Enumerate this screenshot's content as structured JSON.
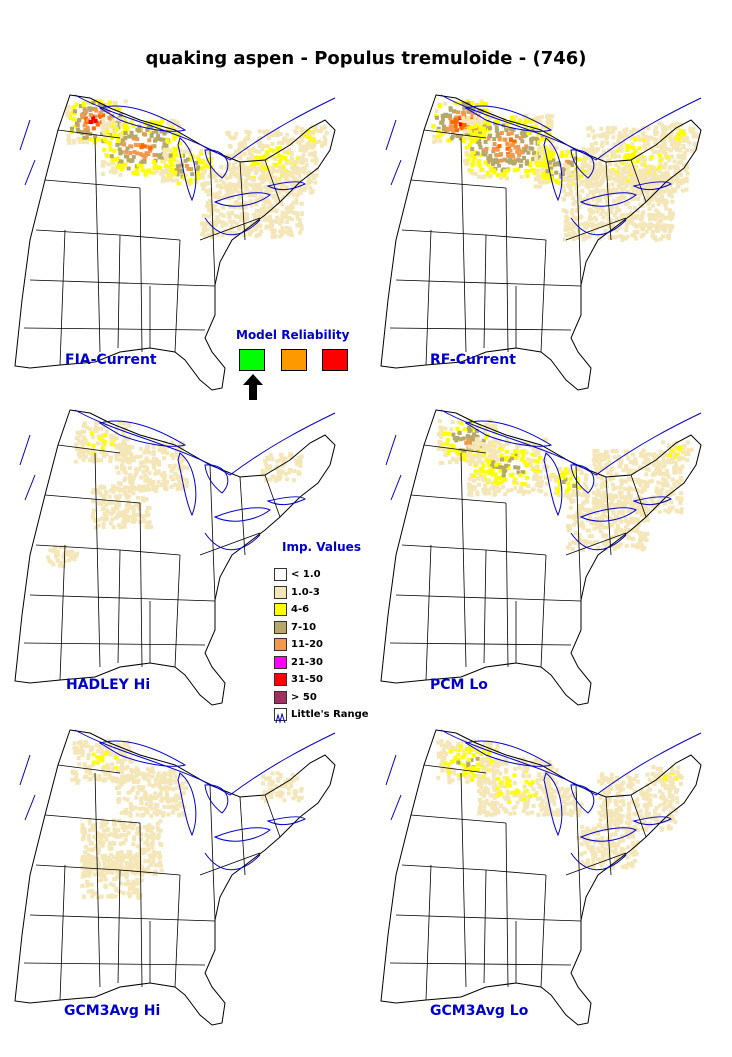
{
  "title": "quaking aspen - Populus tremuloide - (746)",
  "panels": [
    {
      "label": "FIA-Current"
    },
    {
      "label": "RF-Current"
    },
    {
      "label": "HADLEY Hi"
    },
    {
      "label": "PCM Lo"
    },
    {
      "label": "GCM3Avg Hi"
    },
    {
      "label": "GCM3Avg Lo"
    }
  ],
  "reliability": {
    "title": "Model Reliability",
    "colors": [
      "#00ff00",
      "#ff9900",
      "#ff0000"
    ],
    "selected": "high"
  },
  "legend": {
    "title": "Imp. Values",
    "items": [
      {
        "label": "< 1.0",
        "color": "#ffffff"
      },
      {
        "label": "1.0-3",
        "color": "#f5e6b8"
      },
      {
        "label": "4-6",
        "color": "#ffff00"
      },
      {
        "label": "7-10",
        "color": "#b5a86a"
      },
      {
        "label": "11-20",
        "color": "#f09a50"
      },
      {
        "label": "21-30",
        "color": "#ff00ff"
      },
      {
        "label": "31-50",
        "color": "#ff0000"
      },
      {
        "label": "> 50",
        "color": "#a03060"
      },
      {
        "label": "Little's Range",
        "color": "#0000cc",
        "icon": "little-range-icon"
      }
    ]
  },
  "colors": {
    "range_line": "#0000cc",
    "state_line": "#000000"
  }
}
